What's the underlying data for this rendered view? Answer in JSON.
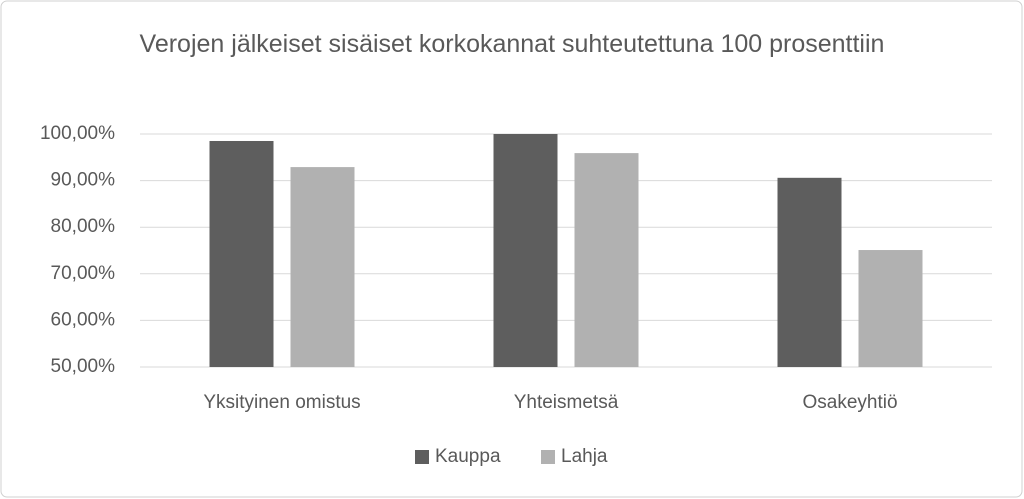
{
  "chart_data": {
    "type": "bar",
    "title": "Verojen jälkeiset sisäiset korkokannat suhteutettuna 100 prosenttiin",
    "categories": [
      "Yksityinen omistus",
      "Yhteismetsä",
      "Osakeyhtiö"
    ],
    "series": [
      {
        "name": "Kauppa",
        "color": "#5e5e5e",
        "values": [
          98.5,
          100,
          90.6
        ]
      },
      {
        "name": "Lahja",
        "color": "#b1b1b1",
        "values": [
          92.9,
          95.9,
          75.1
        ]
      }
    ],
    "ylim": [
      50,
      100
    ],
    "yticks": [
      {
        "value": 50,
        "label": "50,00%"
      },
      {
        "value": 60,
        "label": "60,00%"
      },
      {
        "value": 70,
        "label": "70,00%"
      },
      {
        "value": 80,
        "label": "80,00%"
      },
      {
        "value": 90,
        "label": "90,00%"
      },
      {
        "value": 100,
        "label": "100,00%"
      }
    ],
    "grid": true,
    "legend": "bottom"
  }
}
